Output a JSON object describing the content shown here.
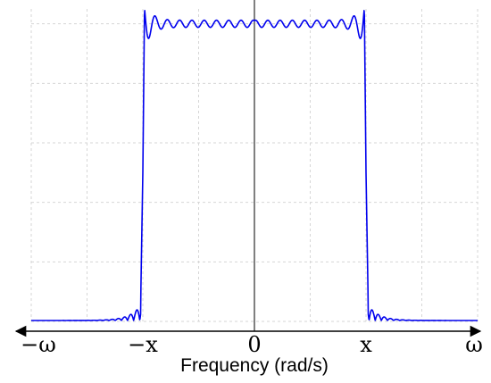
{
  "chart_data": {
    "type": "line",
    "title": "",
    "xlabel": "Frequency (rad/s)",
    "ylabel": "",
    "xlim": [
      -1,
      1
    ],
    "ylim": [
      0,
      1.05
    ],
    "grid": true,
    "grid_style": "dashed",
    "legend": "none",
    "x_ticks": [
      {
        "value": -1,
        "label": "−ω"
      },
      {
        "value": -0.5,
        "label": "−x"
      },
      {
        "value": 0,
        "label": "0"
      },
      {
        "value": 0.5,
        "label": "x"
      },
      {
        "value": 1,
        "label": "ω"
      }
    ],
    "series": [
      {
        "color": "#0000ee",
        "passband_edge": 0.5,
        "gibbs_overshoot": 1.09,
        "x": [
          -1.0,
          -0.9,
          -0.8,
          -0.7,
          -0.6,
          -0.55,
          -0.52,
          -0.51,
          -0.5,
          -0.49,
          -0.48,
          -0.46,
          -0.44,
          -0.4,
          -0.3,
          -0.2,
          -0.1,
          0.0,
          0.1,
          0.2,
          0.3,
          0.4,
          0.44,
          0.46,
          0.48,
          0.49,
          0.5,
          0.51,
          0.52,
          0.55,
          0.6,
          0.7,
          0.8,
          0.9,
          1.0
        ],
        "y": [
          0.0,
          0.0,
          0.0,
          0.0,
          0.01,
          0.02,
          0.04,
          0.06,
          0.5,
          0.94,
          1.09,
          0.98,
          1.05,
          0.99,
          1.01,
          0.99,
          1.01,
          1.0,
          1.01,
          0.99,
          1.01,
          0.99,
          1.05,
          0.98,
          1.09,
          0.94,
          0.5,
          0.06,
          0.04,
          0.02,
          0.01,
          0.0,
          0.0,
          0.0,
          0.0
        ]
      }
    ]
  }
}
